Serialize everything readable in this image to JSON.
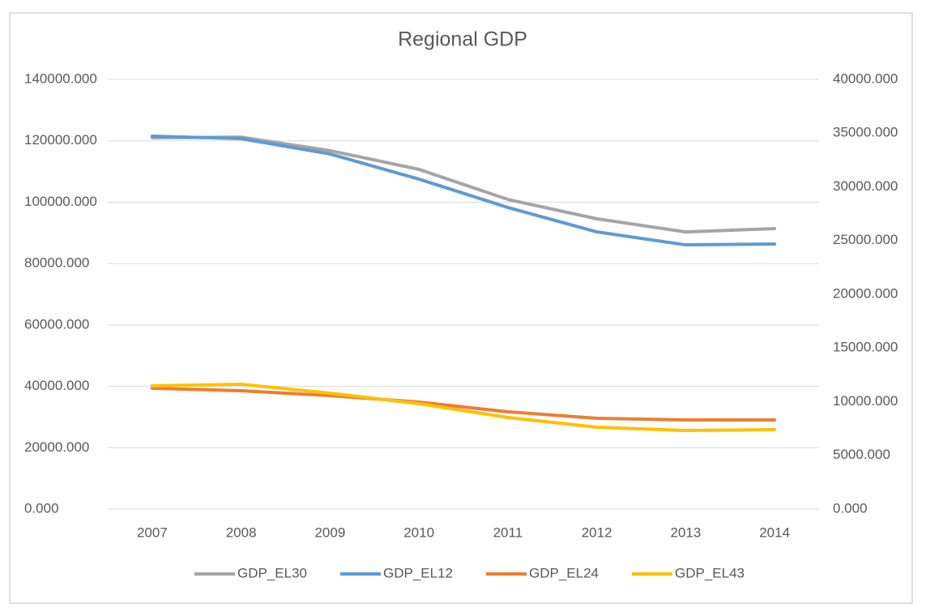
{
  "chart_data": {
    "type": "line",
    "title": "Regional GDP",
    "categories": [
      "2007",
      "2008",
      "2009",
      "2010",
      "2011",
      "2012",
      "2013",
      "2014"
    ],
    "series": [
      {
        "name": "GDP_EL30",
        "color": "#a5a5a5",
        "axis": "y",
        "values": [
          121000,
          121200,
          116800,
          110700,
          100900,
          94600,
          90300,
          91400
        ]
      },
      {
        "name": "GDP_EL12",
        "color": "#5b9bd5",
        "axis": "y2",
        "values": [
          34720,
          34490,
          33060,
          30720,
          28080,
          25810,
          24600,
          24680
        ]
      },
      {
        "name": "GDP_EL24",
        "color": "#ed7d31",
        "axis": "y2",
        "values": [
          11250,
          11020,
          10570,
          9960,
          9060,
          8450,
          8300,
          8300
        ]
      },
      {
        "name": "GDP_EL43",
        "color": "#ffc000",
        "axis": "y2",
        "values": [
          11470,
          11620,
          10790,
          9810,
          8530,
          7620,
          7320,
          7400
        ]
      }
    ],
    "ylim": [
      0,
      140000
    ],
    "yticks": [
      {
        "value": 0,
        "label": "0.000"
      },
      {
        "value": 20000,
        "label": "20000.000"
      },
      {
        "value": 40000,
        "label": "40000.000"
      },
      {
        "value": 60000,
        "label": "60000.000"
      },
      {
        "value": 80000,
        "label": "80000.000"
      },
      {
        "value": 100000,
        "label": "100000.000"
      },
      {
        "value": 120000,
        "label": "120000.000"
      },
      {
        "value": 140000,
        "label": "140000.000"
      }
    ],
    "y2lim": [
      0,
      40000
    ],
    "y2ticks": [
      {
        "value": 0,
        "label": "0.000"
      },
      {
        "value": 5000,
        "label": "5000.000"
      },
      {
        "value": 10000,
        "label": "10000.000"
      },
      {
        "value": 15000,
        "label": "15000.000"
      },
      {
        "value": 20000,
        "label": "20000.000"
      },
      {
        "value": 25000,
        "label": "25000.000"
      },
      {
        "value": 30000,
        "label": "30000.000"
      },
      {
        "value": 35000,
        "label": "35000.000"
      },
      {
        "value": 40000,
        "label": "40000.000"
      }
    ],
    "grid": true,
    "legend": "bottom"
  }
}
